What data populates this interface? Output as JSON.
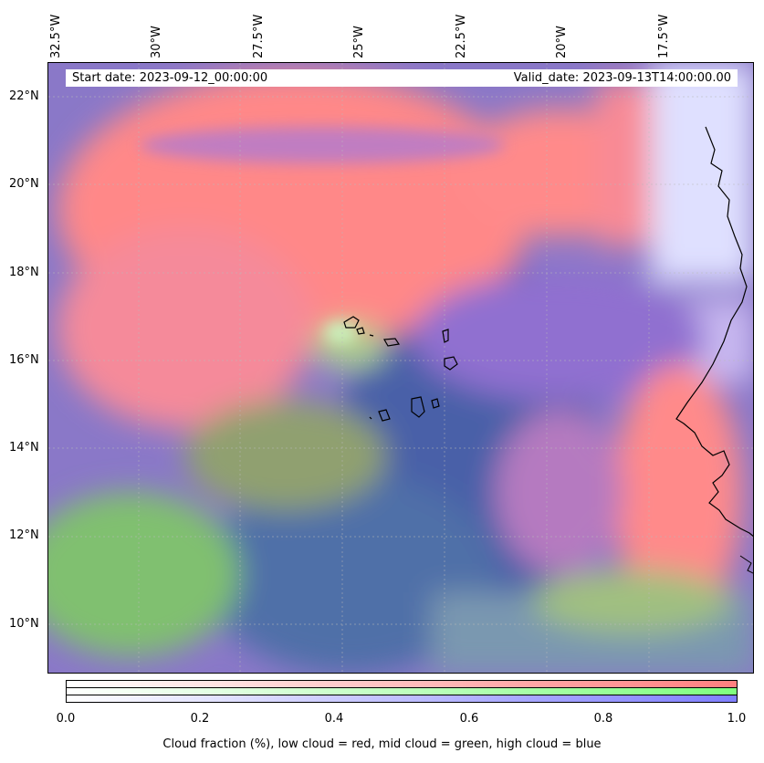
{
  "header": {
    "start_date": "Start date: 2023-09-12_00:00:00",
    "valid_date": "Valid_date: 2023-09-13T14:00:00.00"
  },
  "axes": {
    "lon_labels": [
      "32.5°W",
      "30°W",
      "27.5°W",
      "25°W",
      "22.5°W",
      "20°W",
      "17.5°W"
    ],
    "lat_labels": [
      "22°N",
      "20°N",
      "18°N",
      "16°N",
      "14°N",
      "12°N",
      "10°N"
    ]
  },
  "colorbar": {
    "ticks": [
      "0.0",
      "0.2",
      "0.4",
      "0.6",
      "0.8",
      "1.0"
    ],
    "label": "Cloud fraction (%), low cloud = red, mid cloud = green, high cloud = blue",
    "colors": {
      "low": "#ff7f7f",
      "mid": "#7fff7f",
      "high": "#7f7fff"
    }
  }
}
